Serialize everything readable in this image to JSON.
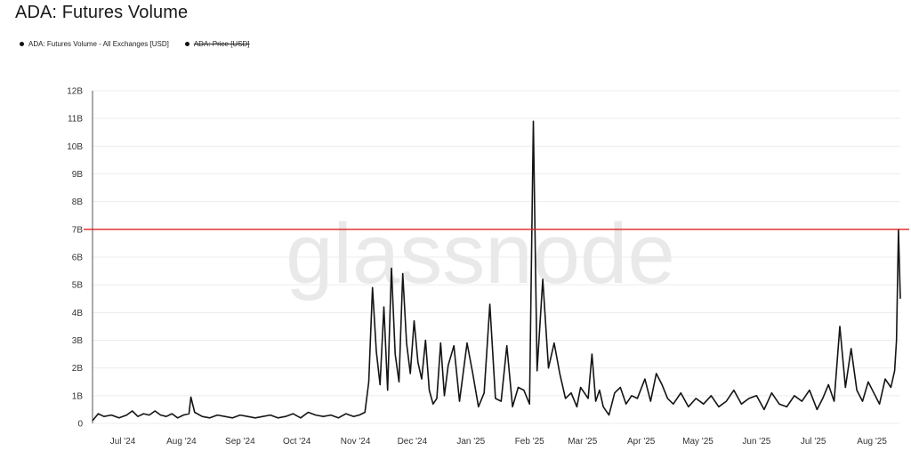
{
  "title": "ADA: Futures Volume",
  "watermark": "glassnode",
  "legend": {
    "items": [
      {
        "label": "ADA: Futures Volume - All Exchanges [USD]",
        "enabled": true
      },
      {
        "label": "ADA: Price [USD]",
        "enabled": false
      }
    ]
  },
  "colors": {
    "line": "#141414",
    "threshold": "#e02020",
    "grid": "#ececec",
    "axis": "#cccccc"
  },
  "chart_data": {
    "type": "line",
    "title": "ADA: Futures Volume",
    "xlabel": "",
    "ylabel": "",
    "ylim": [
      0,
      12
    ],
    "y_unit": "B",
    "y_ticks": [
      "0",
      "1B",
      "2B",
      "3B",
      "4B",
      "5B",
      "6B",
      "7B",
      "8B",
      "9B",
      "10B",
      "11B",
      "12B"
    ],
    "x_ticks": [
      "Jul '24",
      "Aug '24",
      "Sep '24",
      "Oct '24",
      "Nov '24",
      "Dec '24",
      "Jan '25",
      "Feb '25",
      "Mar '25",
      "Apr '25",
      "May '25",
      "Jun '25",
      "Jul '25",
      "Aug '25"
    ],
    "x_start": "2024-06-15",
    "x_end": "2025-08-16",
    "threshold_line": 7.0,
    "grid": true,
    "legend_position": "top-left",
    "series": [
      {
        "name": "ADA: Futures Volume - All Exchanges [USD]",
        "x": [
          "2024-06-15",
          "2024-06-18",
          "2024-06-21",
          "2024-06-25",
          "2024-06-29",
          "2024-07-03",
          "2024-07-06",
          "2024-07-09",
          "2024-07-12",
          "2024-07-15",
          "2024-07-18",
          "2024-07-21",
          "2024-07-24",
          "2024-07-27",
          "2024-07-30",
          "2024-08-02",
          "2024-08-05",
          "2024-08-06",
          "2024-08-08",
          "2024-08-12",
          "2024-08-16",
          "2024-08-20",
          "2024-08-24",
          "2024-08-28",
          "2024-09-01",
          "2024-09-05",
          "2024-09-09",
          "2024-09-13",
          "2024-09-17",
          "2024-09-21",
          "2024-09-25",
          "2024-09-29",
          "2024-10-03",
          "2024-10-07",
          "2024-10-11",
          "2024-10-15",
          "2024-10-19",
          "2024-10-23",
          "2024-10-27",
          "2024-10-31",
          "2024-11-03",
          "2024-11-06",
          "2024-11-08",
          "2024-11-10",
          "2024-11-12",
          "2024-11-14",
          "2024-11-16",
          "2024-11-18",
          "2024-11-20",
          "2024-11-22",
          "2024-11-24",
          "2024-11-26",
          "2024-11-28",
          "2024-11-30",
          "2024-12-02",
          "2024-12-04",
          "2024-12-06",
          "2024-12-08",
          "2024-12-10",
          "2024-12-12",
          "2024-12-14",
          "2024-12-16",
          "2024-12-18",
          "2024-12-20",
          "2024-12-23",
          "2024-12-26",
          "2024-12-30",
          "2025-01-02",
          "2025-01-05",
          "2025-01-08",
          "2025-01-11",
          "2025-01-14",
          "2025-01-17",
          "2025-01-20",
          "2025-01-23",
          "2025-01-26",
          "2025-01-29",
          "2025-02-01",
          "2025-02-03",
          "2025-02-05",
          "2025-02-08",
          "2025-02-11",
          "2025-02-14",
          "2025-02-17",
          "2025-02-20",
          "2025-02-23",
          "2025-02-26",
          "2025-02-28",
          "2025-03-02",
          "2025-03-04",
          "2025-03-06",
          "2025-03-08",
          "2025-03-10",
          "2025-03-12",
          "2025-03-15",
          "2025-03-18",
          "2025-03-21",
          "2025-03-24",
          "2025-03-27",
          "2025-03-30",
          "2025-04-03",
          "2025-04-06",
          "2025-04-09",
          "2025-04-12",
          "2025-04-15",
          "2025-04-18",
          "2025-04-22",
          "2025-04-26",
          "2025-04-30",
          "2025-05-04",
          "2025-05-08",
          "2025-05-12",
          "2025-05-16",
          "2025-05-20",
          "2025-05-24",
          "2025-05-28",
          "2025-06-01",
          "2025-06-05",
          "2025-06-09",
          "2025-06-13",
          "2025-06-17",
          "2025-06-21",
          "2025-06-25",
          "2025-06-29",
          "2025-07-03",
          "2025-07-06",
          "2025-07-09",
          "2025-07-12",
          "2025-07-15",
          "2025-07-18",
          "2025-07-21",
          "2025-07-24",
          "2025-07-27",
          "2025-07-30",
          "2025-08-02",
          "2025-08-05",
          "2025-08-08",
          "2025-08-11",
          "2025-08-13",
          "2025-08-14",
          "2025-08-15",
          "2025-08-16"
        ],
        "values": [
          0.1,
          0.35,
          0.25,
          0.3,
          0.2,
          0.3,
          0.45,
          0.25,
          0.35,
          0.3,
          0.45,
          0.3,
          0.25,
          0.35,
          0.2,
          0.3,
          0.35,
          0.95,
          0.4,
          0.25,
          0.2,
          0.3,
          0.25,
          0.2,
          0.3,
          0.25,
          0.2,
          0.25,
          0.3,
          0.2,
          0.25,
          0.35,
          0.2,
          0.4,
          0.3,
          0.25,
          0.3,
          0.2,
          0.35,
          0.25,
          0.3,
          0.4,
          1.5,
          4.9,
          2.6,
          1.4,
          4.2,
          1.2,
          5.6,
          2.5,
          1.5,
          5.4,
          2.9,
          1.8,
          3.7,
          2.2,
          1.6,
          3.0,
          1.2,
          0.7,
          0.9,
          2.9,
          1.0,
          2.1,
          2.8,
          0.8,
          2.9,
          1.8,
          0.6,
          1.1,
          4.3,
          0.9,
          0.8,
          2.8,
          0.6,
          1.3,
          1.2,
          0.7,
          10.9,
          1.9,
          5.2,
          2.0,
          2.9,
          1.8,
          0.9,
          1.1,
          0.6,
          1.3,
          1.1,
          0.9,
          2.5,
          0.8,
          1.2,
          0.6,
          0.3,
          1.1,
          1.3,
          0.7,
          1.0,
          0.9,
          1.6,
          0.8,
          1.8,
          1.4,
          0.9,
          0.7,
          1.1,
          0.6,
          0.9,
          0.7,
          1.0,
          0.6,
          0.8,
          1.2,
          0.7,
          0.9,
          1.0,
          0.5,
          1.1,
          0.7,
          0.6,
          1.0,
          0.8,
          1.2,
          0.5,
          0.9,
          1.4,
          0.8,
          3.5,
          1.3,
          2.7,
          1.2,
          0.8,
          1.5,
          1.1,
          0.7,
          1.6,
          1.3,
          1.9,
          3.0,
          7.0,
          4.5
        ]
      }
    ]
  }
}
